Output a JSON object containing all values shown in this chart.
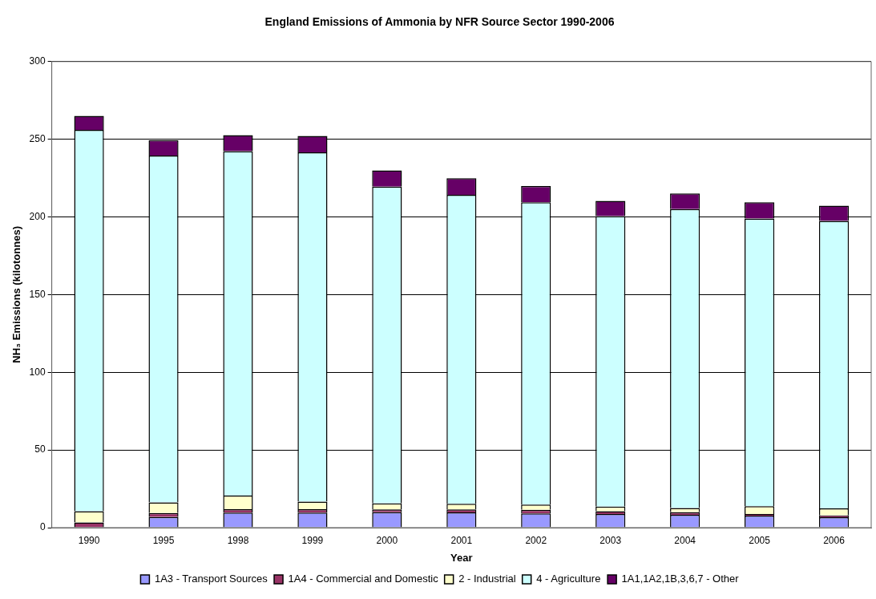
{
  "chart_data": {
    "type": "bar",
    "title": "England Emissions of Ammonia by NFR Source Sector 1990-2006",
    "xlabel": "Year",
    "ylabel": "NH₃ Emissions (kilotonnes)",
    "categories": [
      "1990",
      "1995",
      "1998",
      "1999",
      "2000",
      "2001",
      "2002",
      "2003",
      "2004",
      "2005",
      "2006"
    ],
    "stacked": true,
    "grid": "y",
    "legend": "bottom",
    "ylim": [
      0,
      300
    ],
    "yticks": [
      0,
      50,
      100,
      150,
      200,
      250,
      300
    ],
    "series": [
      {
        "name": "1A3 - Transport Sources",
        "color": "#9999ff",
        "values": [
          null,
          6.8,
          9.7,
          9.7,
          9.9,
          9.8,
          9.2,
          8.8,
          8.3,
          7.8,
          6.7
        ]
      },
      {
        "name": "1A4 - Commercial and Domestic",
        "color": "#993366",
        "values": [
          3.3,
          2.6,
          2.2,
          2.2,
          1.8,
          1.9,
          2.3,
          1.8,
          1.6,
          1.0,
          1.2
        ]
      },
      {
        "name": "2 - Industrial",
        "color": "#ffffcc",
        "values": [
          7.3,
          6.9,
          8.7,
          4.9,
          3.9,
          3.7,
          3.4,
          2.9,
          2.7,
          5.0,
          4.5
        ]
      },
      {
        "name": "4 - Agriculture",
        "color": "#ccffff",
        "values": [
          245.4,
          223.2,
          221.8,
          224.8,
          203.9,
          198.8,
          194.6,
          187.0,
          192.4,
          185.2,
          185.1
        ]
      },
      {
        "name": "1A1,1A2,1B,3,6,7 - Other",
        "color": "#660066",
        "values": [
          9.0,
          10.0,
          10.3,
          10.5,
          10.5,
          10.7,
          10.4,
          9.9,
          10.1,
          10.4,
          9.7
        ]
      }
    ]
  }
}
